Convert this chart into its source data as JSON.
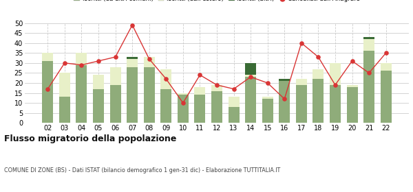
{
  "years": [
    "02",
    "03",
    "04",
    "05",
    "06",
    "07",
    "08",
    "09",
    "10",
    "11",
    "12",
    "13",
    "14",
    "15",
    "16",
    "17",
    "18",
    "19",
    "20",
    "21",
    "22"
  ],
  "iscritti_altri_comuni": [
    31,
    13,
    29,
    17,
    19,
    28,
    28,
    17,
    14,
    14,
    16,
    8,
    23,
    12,
    21,
    19,
    22,
    19,
    18,
    36,
    26
  ],
  "iscritti_estero": [
    4,
    12,
    6,
    7,
    9,
    4,
    5,
    10,
    1,
    4,
    3,
    5,
    1,
    1,
    0,
    3,
    5,
    11,
    1,
    6,
    4
  ],
  "iscritti_altri": [
    0,
    0,
    0,
    0,
    0,
    1,
    0,
    0,
    0,
    0,
    0,
    0,
    6,
    0,
    1,
    0,
    0,
    0,
    0,
    1,
    0
  ],
  "cancellati": [
    17,
    30,
    29,
    31,
    33,
    49,
    32,
    22,
    10,
    24,
    19,
    17,
    23,
    20,
    12,
    40,
    33,
    19,
    31,
    25,
    35
  ],
  "color_altri_comuni": "#8fac7a",
  "color_estero": "#e8f0c8",
  "color_altri": "#3a6b35",
  "color_cancellati": "#d93535",
  "title": "Flusso migratorio della popolazione",
  "subtitle": "COMUNE DI ZONE (BS) - Dati ISTAT (bilancio demografico 1 gen-31 dic) - Elaborazione TUTTITALIA.IT",
  "ylim": [
    0,
    50
  ],
  "yticks": [
    0,
    5,
    10,
    15,
    20,
    25,
    30,
    35,
    40,
    45,
    50
  ]
}
